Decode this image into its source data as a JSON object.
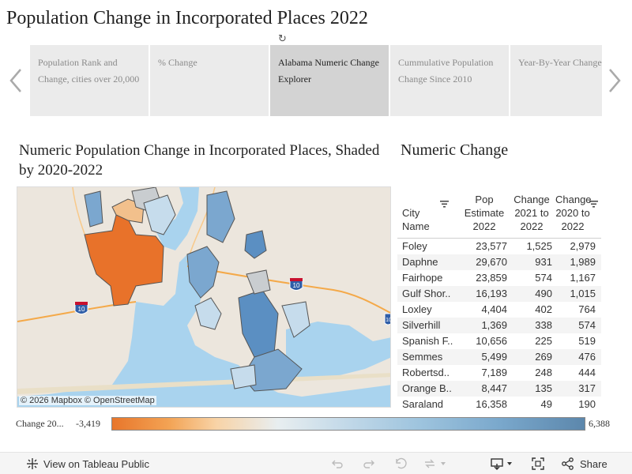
{
  "page": {
    "title": "Population Change in Incorporated Places 2022"
  },
  "story": {
    "tabs": [
      {
        "label": "Population Rank and Change, cities over 20,000",
        "active": false
      },
      {
        "label": "% Change",
        "active": false
      },
      {
        "label": "Alabama Numeric Change Explorer",
        "active": true
      },
      {
        "label": "Cummulative Population Change Since 2010",
        "active": false
      },
      {
        "label": "Year-By-Year Change",
        "active": false
      }
    ]
  },
  "map": {
    "title": "Numeric Population Change in Incorporated Places, Shaded by 2020-2022",
    "attribution": "© 2026 Mapbox  © OpenStreetMap",
    "shields": [
      "10",
      "10",
      "10"
    ]
  },
  "table": {
    "title": "Numeric Change",
    "headers": {
      "city": "City Name",
      "pop": "Pop Estimate 2022",
      "c1": "Change 2021 to 2022",
      "c2": "Change 2020 to 2022"
    },
    "rows": [
      {
        "city": "Foley",
        "pop": "23,577",
        "c1": "1,525",
        "c2": "2,979"
      },
      {
        "city": "Daphne",
        "pop": "29,670",
        "c1": "931",
        "c2": "1,989"
      },
      {
        "city": "Fairhope",
        "pop": "23,859",
        "c1": "574",
        "c2": "1,167"
      },
      {
        "city": "Gulf Shor..",
        "pop": "16,193",
        "c1": "490",
        "c2": "1,015"
      },
      {
        "city": "Loxley",
        "pop": "4,404",
        "c1": "402",
        "c2": "764"
      },
      {
        "city": "Silverhill",
        "pop": "1,369",
        "c1": "338",
        "c2": "574"
      },
      {
        "city": "Spanish F..",
        "pop": "10,656",
        "c1": "225",
        "c2": "519"
      },
      {
        "city": "Semmes",
        "pop": "5,499",
        "c1": "269",
        "c2": "476"
      },
      {
        "city": "Robertsd..",
        "pop": "7,189",
        "c1": "248",
        "c2": "444"
      },
      {
        "city": "Orange B..",
        "pop": "8,447",
        "c1": "135",
        "c2": "317"
      },
      {
        "city": "Saraland",
        "pop": "16,358",
        "c1": "49",
        "c2": "190"
      }
    ]
  },
  "legend": {
    "label": "Change 20...",
    "min": "-3,419",
    "max": "6,388"
  },
  "toolbar": {
    "view_label": "View on Tableau Public",
    "share_label": "Share"
  },
  "colors": {
    "water": "#a9d3ee",
    "land": "#ece6dd",
    "orange": "#e8722a",
    "light_orange": "#f2c08c",
    "blue": "#7ba7cf",
    "dark_blue": "#5b8fc2",
    "light_blue": "#c6dcec",
    "gray": "#c9cdd0"
  }
}
